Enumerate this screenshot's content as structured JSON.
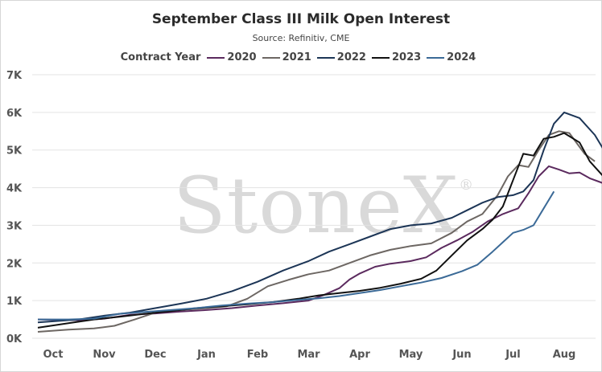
{
  "chart_data": {
    "type": "line",
    "title": "September Class III Milk Open Interest",
    "subtitle": "Source: Refinitiv, CME",
    "legend_title": "Contract Year",
    "legend_position": "top-center",
    "watermark": "StoneX",
    "y_ticks": [
      "0K",
      "1K",
      "2K",
      "3K",
      "4K",
      "5K",
      "6K",
      "7K"
    ],
    "ylim": [
      0,
      7000
    ],
    "x_months": [
      "Oct",
      "Nov",
      "Dec",
      "Jan",
      "Feb",
      "Mar",
      "Apr",
      "May",
      "Jun",
      "Jul",
      "Aug"
    ],
    "x_range_months": [
      0,
      10.8
    ],
    "series": [
      {
        "name": "2020",
        "color": "#5b2a5e",
        "points": [
          [
            -0.3,
            500
          ],
          [
            0.5,
            480
          ],
          [
            1.0,
            520
          ],
          [
            1.5,
            620
          ],
          [
            2.0,
            660
          ],
          [
            2.5,
            710
          ],
          [
            3.0,
            750
          ],
          [
            3.5,
            800
          ],
          [
            4.0,
            870
          ],
          [
            4.5,
            930
          ],
          [
            5.0,
            1000
          ],
          [
            5.3,
            1150
          ],
          [
            5.6,
            1330
          ],
          [
            5.8,
            1560
          ],
          [
            6.0,
            1720
          ],
          [
            6.3,
            1900
          ],
          [
            6.6,
            1980
          ],
          [
            7.0,
            2050
          ],
          [
            7.3,
            2150
          ],
          [
            7.6,
            2400
          ],
          [
            7.9,
            2600
          ],
          [
            8.2,
            2820
          ],
          [
            8.5,
            3100
          ],
          [
            8.8,
            3300
          ],
          [
            9.1,
            3450
          ],
          [
            9.3,
            3850
          ],
          [
            9.5,
            4300
          ],
          [
            9.7,
            4570
          ],
          [
            9.9,
            4480
          ],
          [
            10.1,
            4380
          ],
          [
            10.3,
            4400
          ],
          [
            10.5,
            4250
          ],
          [
            10.8,
            4100
          ]
        ]
      },
      {
        "name": "2021",
        "color": "#6d6763",
        "points": [
          [
            -0.3,
            170
          ],
          [
            0.3,
            230
          ],
          [
            0.8,
            260
          ],
          [
            1.2,
            330
          ],
          [
            1.6,
            500
          ],
          [
            2.0,
            680
          ],
          [
            2.4,
            740
          ],
          [
            3.0,
            800
          ],
          [
            3.4,
            850
          ],
          [
            3.8,
            1050
          ],
          [
            4.2,
            1380
          ],
          [
            4.6,
            1550
          ],
          [
            5.0,
            1700
          ],
          [
            5.4,
            1800
          ],
          [
            5.8,
            2000
          ],
          [
            6.2,
            2200
          ],
          [
            6.6,
            2350
          ],
          [
            7.0,
            2450
          ],
          [
            7.4,
            2520
          ],
          [
            7.8,
            2800
          ],
          [
            8.1,
            3100
          ],
          [
            8.4,
            3300
          ],
          [
            8.7,
            3800
          ],
          [
            8.9,
            4300
          ],
          [
            9.1,
            4600
          ],
          [
            9.3,
            4550
          ],
          [
            9.5,
            5000
          ],
          [
            9.7,
            5400
          ],
          [
            9.9,
            5500
          ],
          [
            10.1,
            5450
          ],
          [
            10.4,
            4900
          ],
          [
            10.6,
            4700
          ]
        ]
      },
      {
        "name": "2022",
        "color": "#1c3556",
        "points": [
          [
            -0.3,
            420
          ],
          [
            0.5,
            500
          ],
          [
            1.0,
            600
          ],
          [
            1.5,
            680
          ],
          [
            2.0,
            800
          ],
          [
            2.5,
            920
          ],
          [
            3.0,
            1050
          ],
          [
            3.5,
            1250
          ],
          [
            4.0,
            1500
          ],
          [
            4.5,
            1800
          ],
          [
            5.0,
            2050
          ],
          [
            5.4,
            2300
          ],
          [
            5.8,
            2500
          ],
          [
            6.2,
            2700
          ],
          [
            6.6,
            2900
          ],
          [
            7.0,
            3000
          ],
          [
            7.4,
            3050
          ],
          [
            7.8,
            3200
          ],
          [
            8.1,
            3400
          ],
          [
            8.4,
            3600
          ],
          [
            8.7,
            3750
          ],
          [
            9.0,
            3800
          ],
          [
            9.2,
            3900
          ],
          [
            9.4,
            4200
          ],
          [
            9.6,
            5000
          ],
          [
            9.8,
            5700
          ],
          [
            10.0,
            6000
          ],
          [
            10.3,
            5850
          ],
          [
            10.6,
            5400
          ],
          [
            10.8,
            4950
          ]
        ]
      },
      {
        "name": "2023",
        "color": "#111111",
        "points": [
          [
            -0.3,
            280
          ],
          [
            0.3,
            400
          ],
          [
            0.8,
            500
          ],
          [
            1.3,
            570
          ],
          [
            1.8,
            650
          ],
          [
            2.3,
            720
          ],
          [
            2.8,
            800
          ],
          [
            3.3,
            850
          ],
          [
            3.8,
            900
          ],
          [
            4.3,
            960
          ],
          [
            4.8,
            1050
          ],
          [
            5.2,
            1140
          ],
          [
            5.6,
            1200
          ],
          [
            6.0,
            1260
          ],
          [
            6.4,
            1340
          ],
          [
            6.8,
            1450
          ],
          [
            7.2,
            1580
          ],
          [
            7.5,
            1800
          ],
          [
            7.8,
            2200
          ],
          [
            8.1,
            2600
          ],
          [
            8.4,
            2900
          ],
          [
            8.6,
            3150
          ],
          [
            8.8,
            3500
          ],
          [
            9.0,
            4200
          ],
          [
            9.2,
            4900
          ],
          [
            9.4,
            4850
          ],
          [
            9.6,
            5300
          ],
          [
            9.8,
            5350
          ],
          [
            10.0,
            5450
          ],
          [
            10.3,
            5200
          ],
          [
            10.5,
            4700
          ],
          [
            10.8,
            4250
          ]
        ]
      },
      {
        "name": "2024",
        "color": "#3b6a97",
        "points": [
          [
            -0.3,
            500
          ],
          [
            0.3,
            500
          ],
          [
            0.8,
            520
          ],
          [
            1.3,
            650
          ],
          [
            1.8,
            700
          ],
          [
            2.3,
            750
          ],
          [
            2.8,
            800
          ],
          [
            3.3,
            870
          ],
          [
            3.8,
            920
          ],
          [
            4.3,
            960
          ],
          [
            4.8,
            1020
          ],
          [
            5.2,
            1060
          ],
          [
            5.6,
            1120
          ],
          [
            6.0,
            1200
          ],
          [
            6.4,
            1280
          ],
          [
            6.8,
            1380
          ],
          [
            7.2,
            1480
          ],
          [
            7.6,
            1600
          ],
          [
            8.0,
            1780
          ],
          [
            8.3,
            1950
          ],
          [
            8.6,
            2300
          ],
          [
            8.8,
            2550
          ],
          [
            9.0,
            2800
          ],
          [
            9.2,
            2880
          ],
          [
            9.4,
            3000
          ],
          [
            9.6,
            3450
          ],
          [
            9.8,
            3900
          ]
        ]
      }
    ]
  }
}
